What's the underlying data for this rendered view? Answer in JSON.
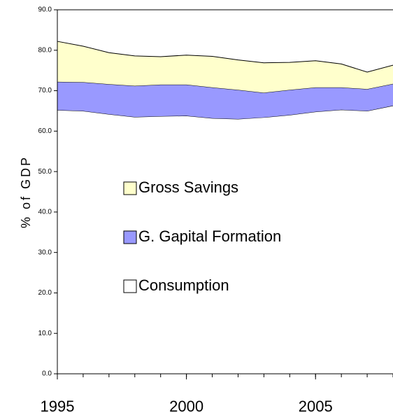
{
  "chart_data": {
    "type": "stacked-area",
    "y_label": "% of GDP",
    "x": [
      1995,
      1996,
      1997,
      1998,
      1999,
      2000,
      2001,
      2002,
      2003,
      2004,
      2005,
      2006,
      2007,
      2008
    ],
    "xlim": [
      1995,
      2008
    ],
    "xticks": [
      1995,
      2000,
      2005
    ],
    "ylim": [
      0,
      90
    ],
    "yticks": [
      {
        "value": 0,
        "label": "0.0"
      },
      {
        "value": 10,
        "label": "10.0"
      },
      {
        "value": 20,
        "label": "20.0"
      },
      {
        "value": 30,
        "label": "30.0"
      },
      {
        "value": 40,
        "label": "40.0"
      },
      {
        "value": 50,
        "label": "50.0"
      },
      {
        "value": 60,
        "label": "60.0"
      },
      {
        "value": 70,
        "label": "70.0"
      },
      {
        "value": 80,
        "label": "80.0"
      },
      {
        "value": 90,
        "label": "90.0"
      }
    ],
    "series": [
      {
        "name": "Consumption",
        "color": "#ffffff",
        "values": [
          65.2,
          65.0,
          64.2,
          63.5,
          63.7,
          63.8,
          63.2,
          63.0,
          63.4,
          64.0,
          64.8,
          65.3,
          65.0,
          66.3
        ]
      },
      {
        "name": "G. Gapital Formation",
        "color": "#9999ff",
        "values": [
          7.0,
          7.1,
          7.4,
          7.7,
          7.8,
          7.7,
          7.6,
          7.2,
          6.1,
          6.2,
          6.0,
          5.5,
          5.4,
          5.4
        ]
      },
      {
        "name": "Gross Savings",
        "color": "#ffffcc",
        "values": [
          10.0,
          8.9,
          7.8,
          7.4,
          6.9,
          7.3,
          7.7,
          7.4,
          7.4,
          6.8,
          6.6,
          5.8,
          4.2,
          4.6
        ]
      }
    ]
  }
}
